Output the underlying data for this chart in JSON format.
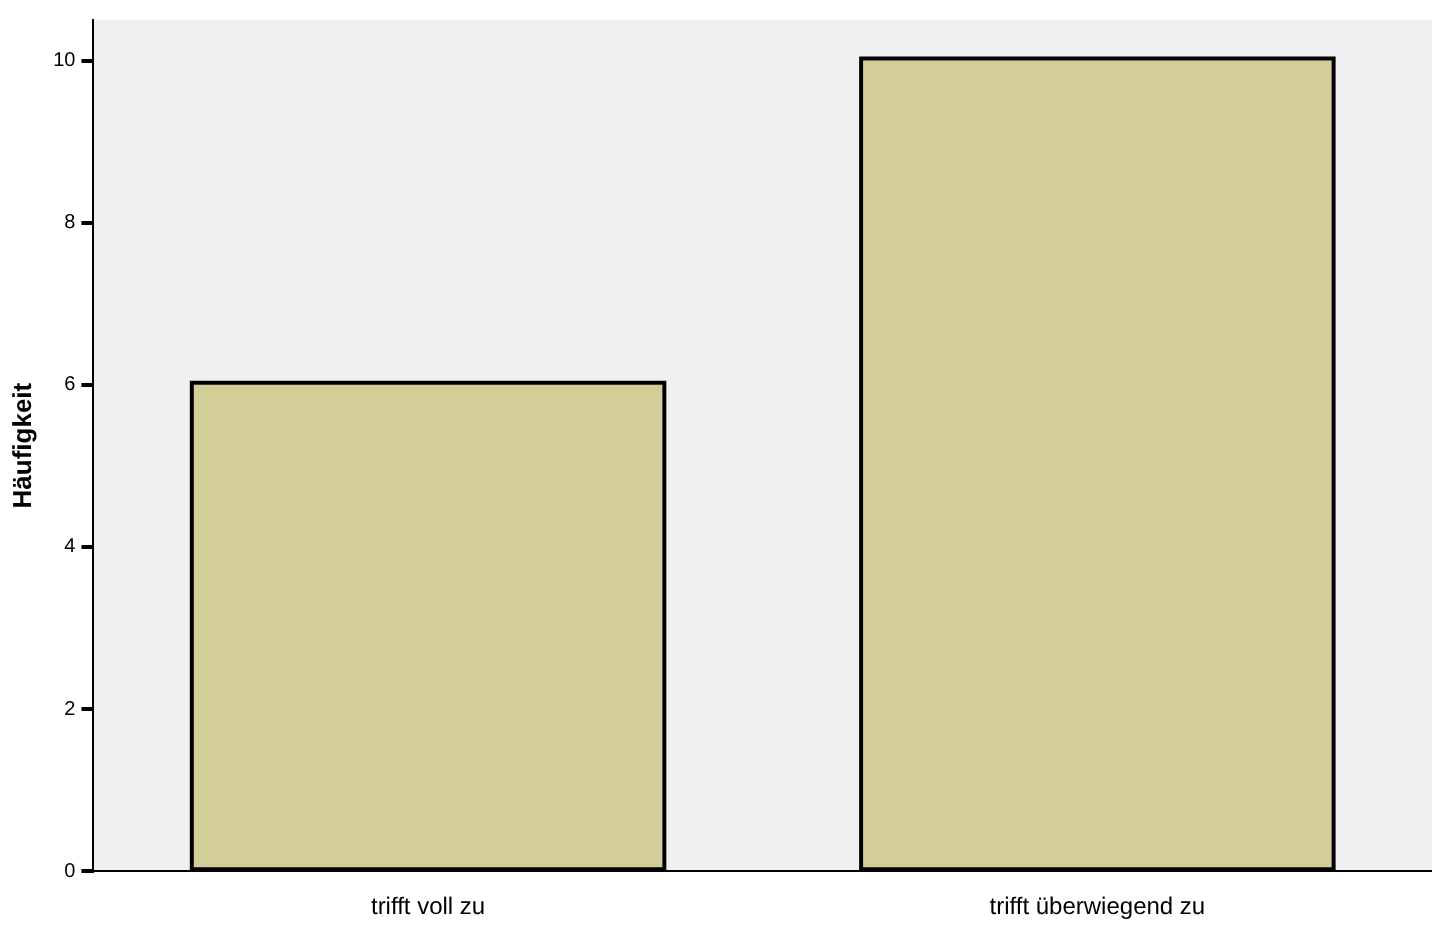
{
  "chart_data": {
    "type": "bar",
    "ylabel": "Häufigkeit",
    "categories": [
      "trifft voll zu",
      "trifft überwiegend zu"
    ],
    "values": [
      6,
      10
    ],
    "color": "#d3ce97",
    "ylim": [
      0,
      10.5
    ],
    "yticks": [
      0,
      2,
      4,
      6,
      8,
      10
    ],
    "grid": false,
    "legend": false
  }
}
